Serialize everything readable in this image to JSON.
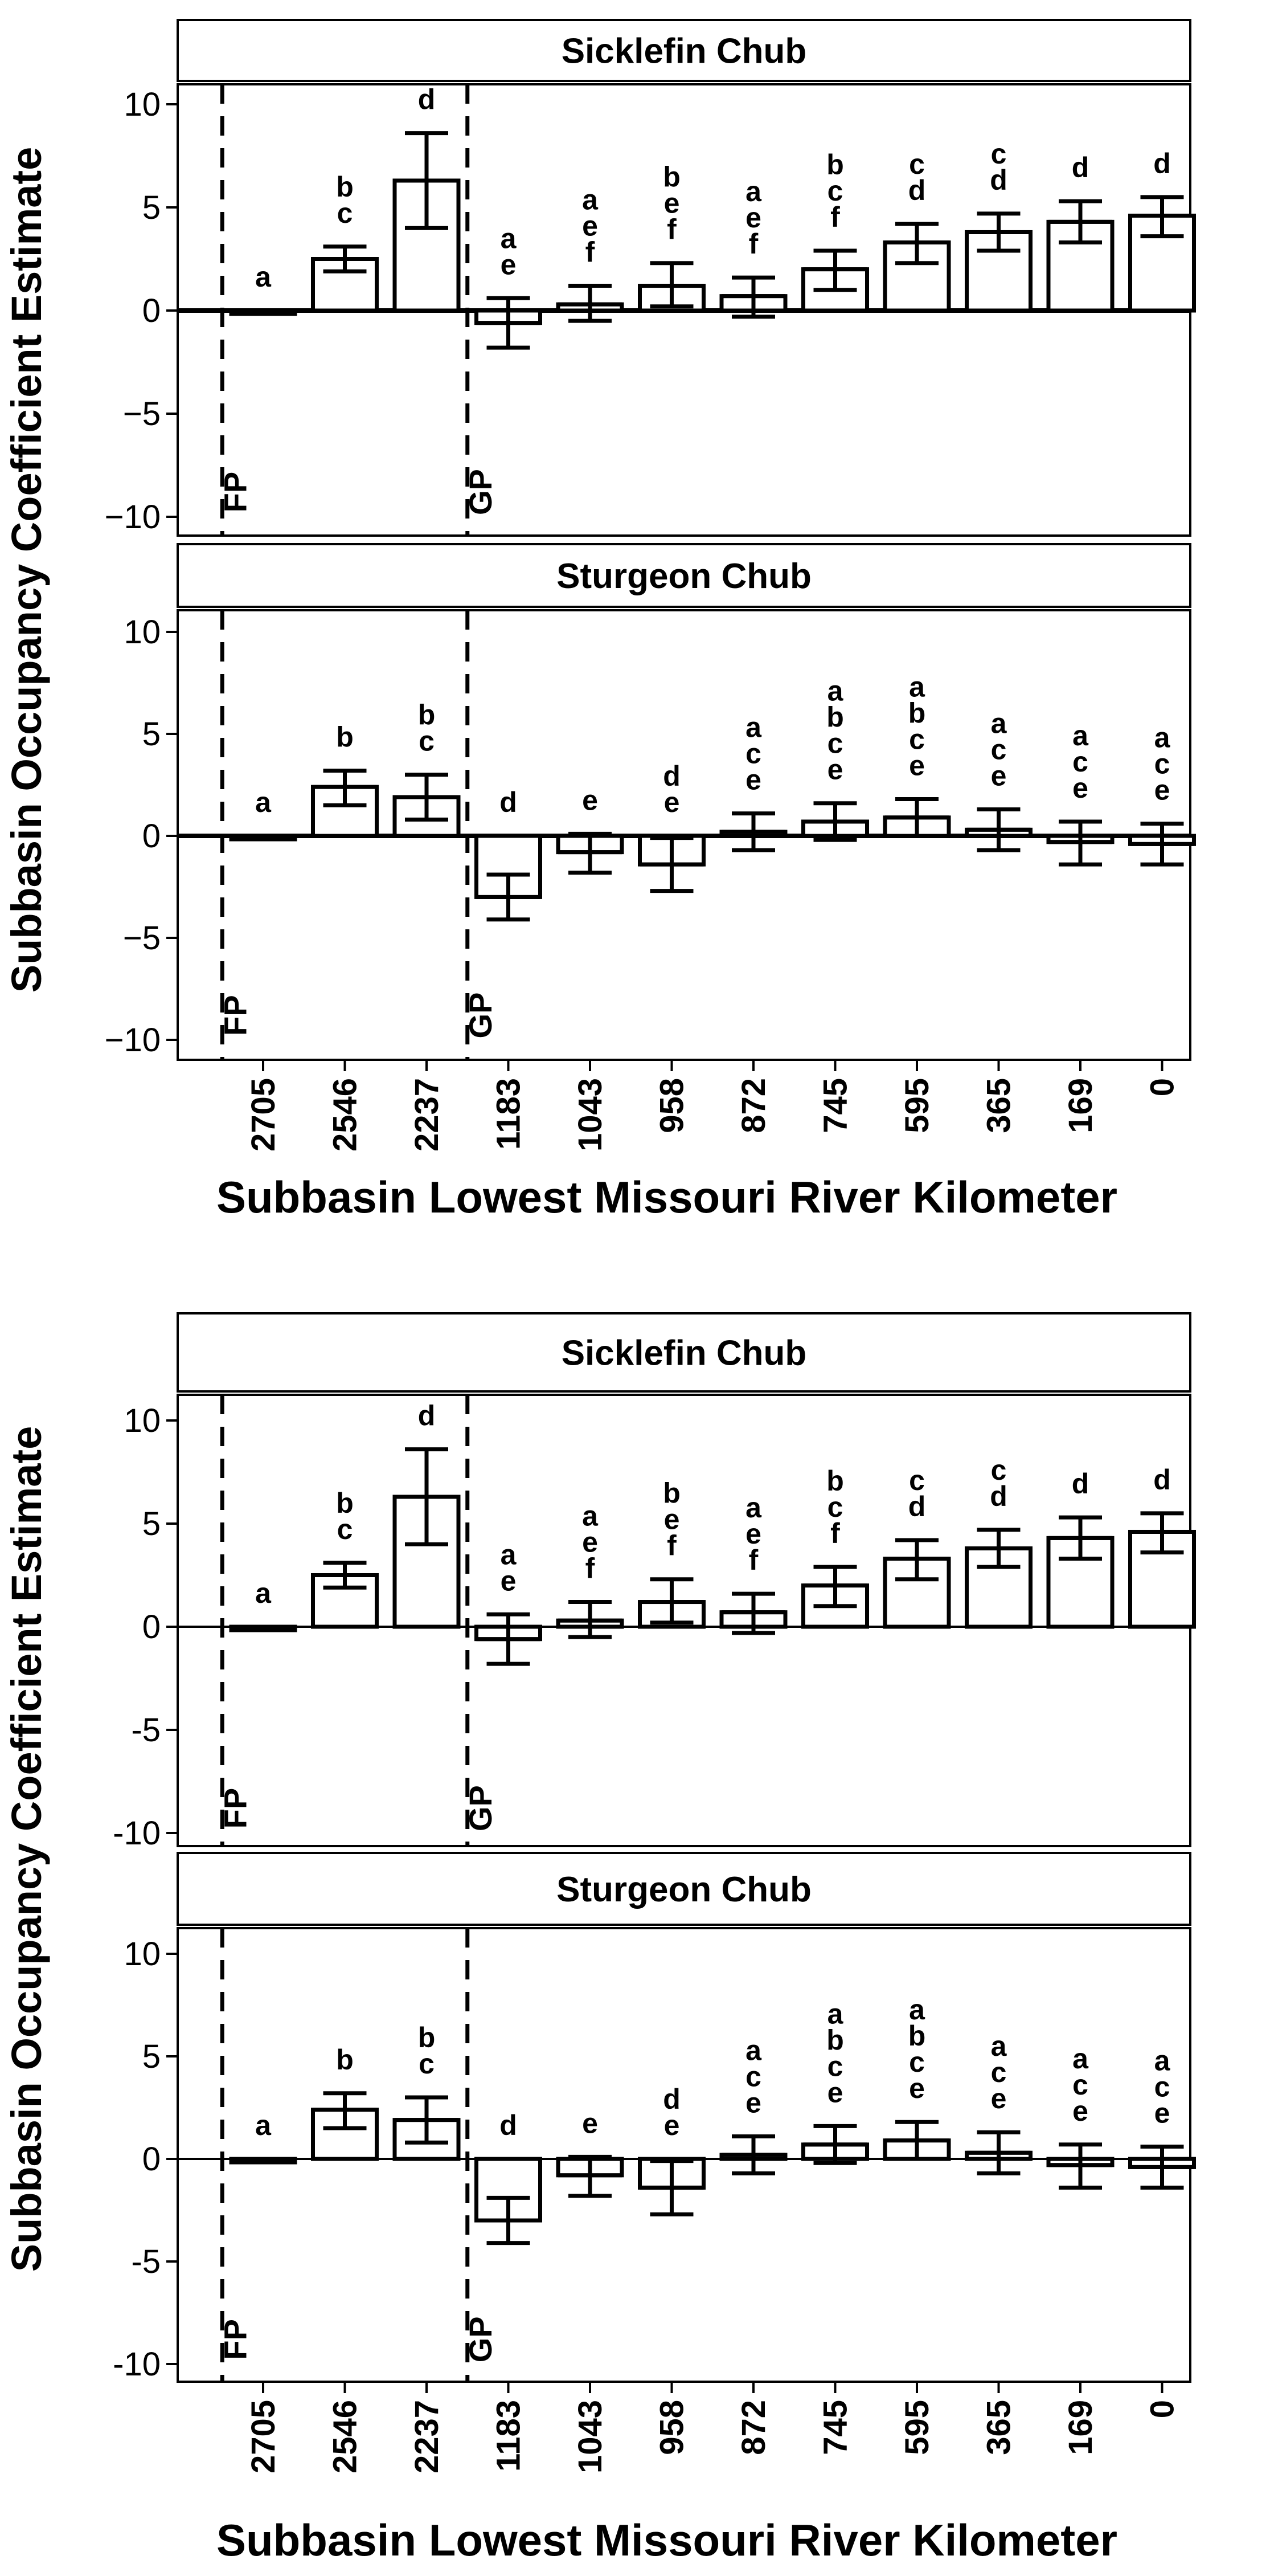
{
  "chart_data": [
    {
      "type": "bar",
      "title": "",
      "xlabel": "Subbasin Lowest Missouri River Kilometer",
      "ylabel": "Subbasin Occupancy Coefficient Estimate",
      "ylim": [
        -11,
        11
      ],
      "yticks": [
        "10",
        "5",
        "0",
        "−5",
        "−10"
      ],
      "categories": [
        "2705",
        "2546",
        "2237",
        "1183",
        "1043",
        "958",
        "872",
        "745",
        "595",
        "365",
        "169",
        "0"
      ],
      "reference_lines": [
        {
          "label": "FP",
          "after_category_index": -1
        },
        {
          "label": "GP",
          "after_category_index": 2
        }
      ],
      "panels": [
        {
          "name": "Sicklefin Chub",
          "values": [
            0,
            2.5,
            6.3,
            -0.6,
            0.3,
            1.2,
            0.7,
            2.0,
            3.3,
            3.8,
            4.3,
            4.6
          ],
          "ci_low": [
            0,
            1.9,
            4.0,
            -1.8,
            -0.5,
            0.2,
            -0.3,
            1.0,
            2.3,
            2.9,
            3.3,
            3.6
          ],
          "ci_high": [
            0,
            3.1,
            8.6,
            0.6,
            1.2,
            2.3,
            1.6,
            2.9,
            4.2,
            4.7,
            5.3,
            5.5
          ],
          "letters": [
            "a",
            "b\nc",
            "d",
            "a\ne",
            "a\ne\nf",
            "b\ne\nf",
            "a\ne\nf",
            "b\nc\nf",
            "c\nd",
            "c\nd",
            "d",
            "d"
          ]
        },
        {
          "name": "Sturgeon Chub",
          "values": [
            0,
            2.4,
            1.9,
            -3.0,
            -0.8,
            -1.4,
            0.2,
            0.7,
            0.9,
            0.3,
            -0.3,
            -0.4
          ],
          "ci_low": [
            0,
            1.5,
            0.8,
            -4.1,
            -1.8,
            -2.7,
            -0.7,
            -0.2,
            0.0,
            -0.7,
            -1.4,
            -1.4
          ],
          "ci_high": [
            0,
            3.2,
            3.0,
            -1.9,
            0.1,
            -0.1,
            1.1,
            1.6,
            1.8,
            1.3,
            0.7,
            0.6
          ],
          "letters": [
            "a",
            "b",
            "b\nc",
            "d",
            "e",
            "d\ne",
            "a\nc\ne",
            "a\nb\nc\ne",
            "a\nb\nc\ne",
            "a\nc\ne",
            "a\nc\ne",
            "a\nc\ne"
          ]
        }
      ]
    },
    {
      "type": "bar",
      "title": "",
      "xlabel": "Subbasin Lowest Missouri River Kilometer",
      "ylabel": "Subbasin Occupancy Coefficient Estimate",
      "ylim": [
        -11,
        11
      ],
      "yticks": [
        "10",
        "5",
        "0",
        "-5",
        "-10"
      ],
      "categories": [
        "2705",
        "2546",
        "2237",
        "1183",
        "1043",
        "958",
        "872",
        "745",
        "595",
        "365",
        "169",
        "0"
      ],
      "reference_lines": [
        {
          "label": "FP",
          "after_category_index": -1
        },
        {
          "label": "GP",
          "after_category_index": 2
        }
      ],
      "panels": [
        {
          "name": "Sicklefin Chub",
          "values": [
            0,
            2.5,
            6.3,
            -0.6,
            0.3,
            1.2,
            0.7,
            2.0,
            3.3,
            3.8,
            4.3,
            4.6
          ],
          "ci_low": [
            0,
            1.9,
            4.0,
            -1.8,
            -0.5,
            0.2,
            -0.3,
            1.0,
            2.3,
            2.9,
            3.3,
            3.6
          ],
          "ci_high": [
            0,
            3.1,
            8.6,
            0.6,
            1.2,
            2.3,
            1.6,
            2.9,
            4.2,
            4.7,
            5.3,
            5.5
          ],
          "letters": [
            "a",
            "b\nc",
            "d",
            "a\ne",
            "a\ne\nf",
            "b\ne\nf",
            "a\ne\nf",
            "b\nc\nf",
            "c\nd",
            "c\nd",
            "d",
            "d"
          ]
        },
        {
          "name": "Sturgeon Chub",
          "values": [
            0,
            2.4,
            1.9,
            -3.0,
            -0.8,
            -1.4,
            0.2,
            0.7,
            0.9,
            0.3,
            -0.3,
            -0.4
          ],
          "ci_low": [
            0,
            1.5,
            0.8,
            -4.1,
            -1.8,
            -2.7,
            -0.7,
            -0.2,
            0.0,
            -0.7,
            -1.4,
            -1.4
          ],
          "ci_high": [
            0,
            3.2,
            3.0,
            -1.9,
            0.1,
            -0.1,
            1.1,
            1.6,
            1.8,
            1.3,
            0.7,
            0.6
          ],
          "letters": [
            "a",
            "b",
            "b\nc",
            "d",
            "e",
            "d\ne",
            "a\nc\ne",
            "a\nb\nc\ne",
            "a\nb\nc\ne",
            "a\nc\ne",
            "a\nc\ne",
            "a\nc\ne"
          ]
        }
      ]
    }
  ]
}
